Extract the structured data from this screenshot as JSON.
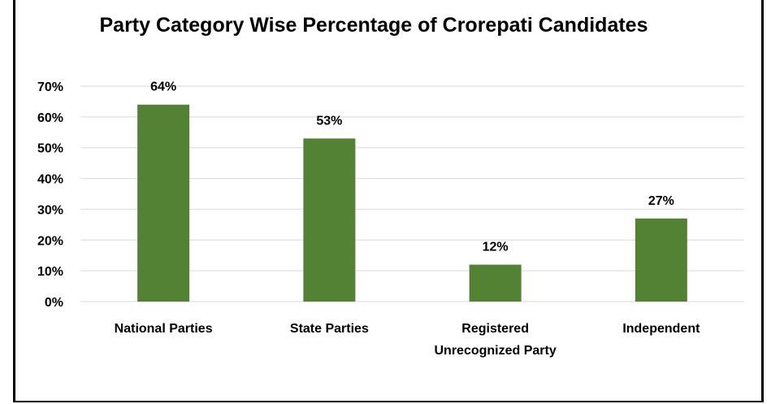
{
  "chart_data": {
    "type": "bar",
    "title": "Party Category Wise Percentage of Crorepati Candidates",
    "categories": [
      [
        "National Parties"
      ],
      [
        "State Parties"
      ],
      [
        "Registered",
        "Unrecognized Party"
      ],
      [
        "Independent"
      ]
    ],
    "values": [
      64,
      53,
      12,
      27
    ],
    "data_labels": [
      "64%",
      "53%",
      "12%",
      "27%"
    ],
    "xlabel": "",
    "ylabel": "",
    "ylim": [
      0,
      70
    ],
    "yticks": [
      0,
      10,
      20,
      30,
      40,
      50,
      60,
      70
    ],
    "ytick_labels": [
      "0%",
      "10%",
      "20%",
      "30%",
      "40%",
      "50%",
      "60%",
      "70%"
    ],
    "grid": true,
    "legend": "none",
    "bar_color": "#548235",
    "grid_color": "#d9d9d9"
  }
}
